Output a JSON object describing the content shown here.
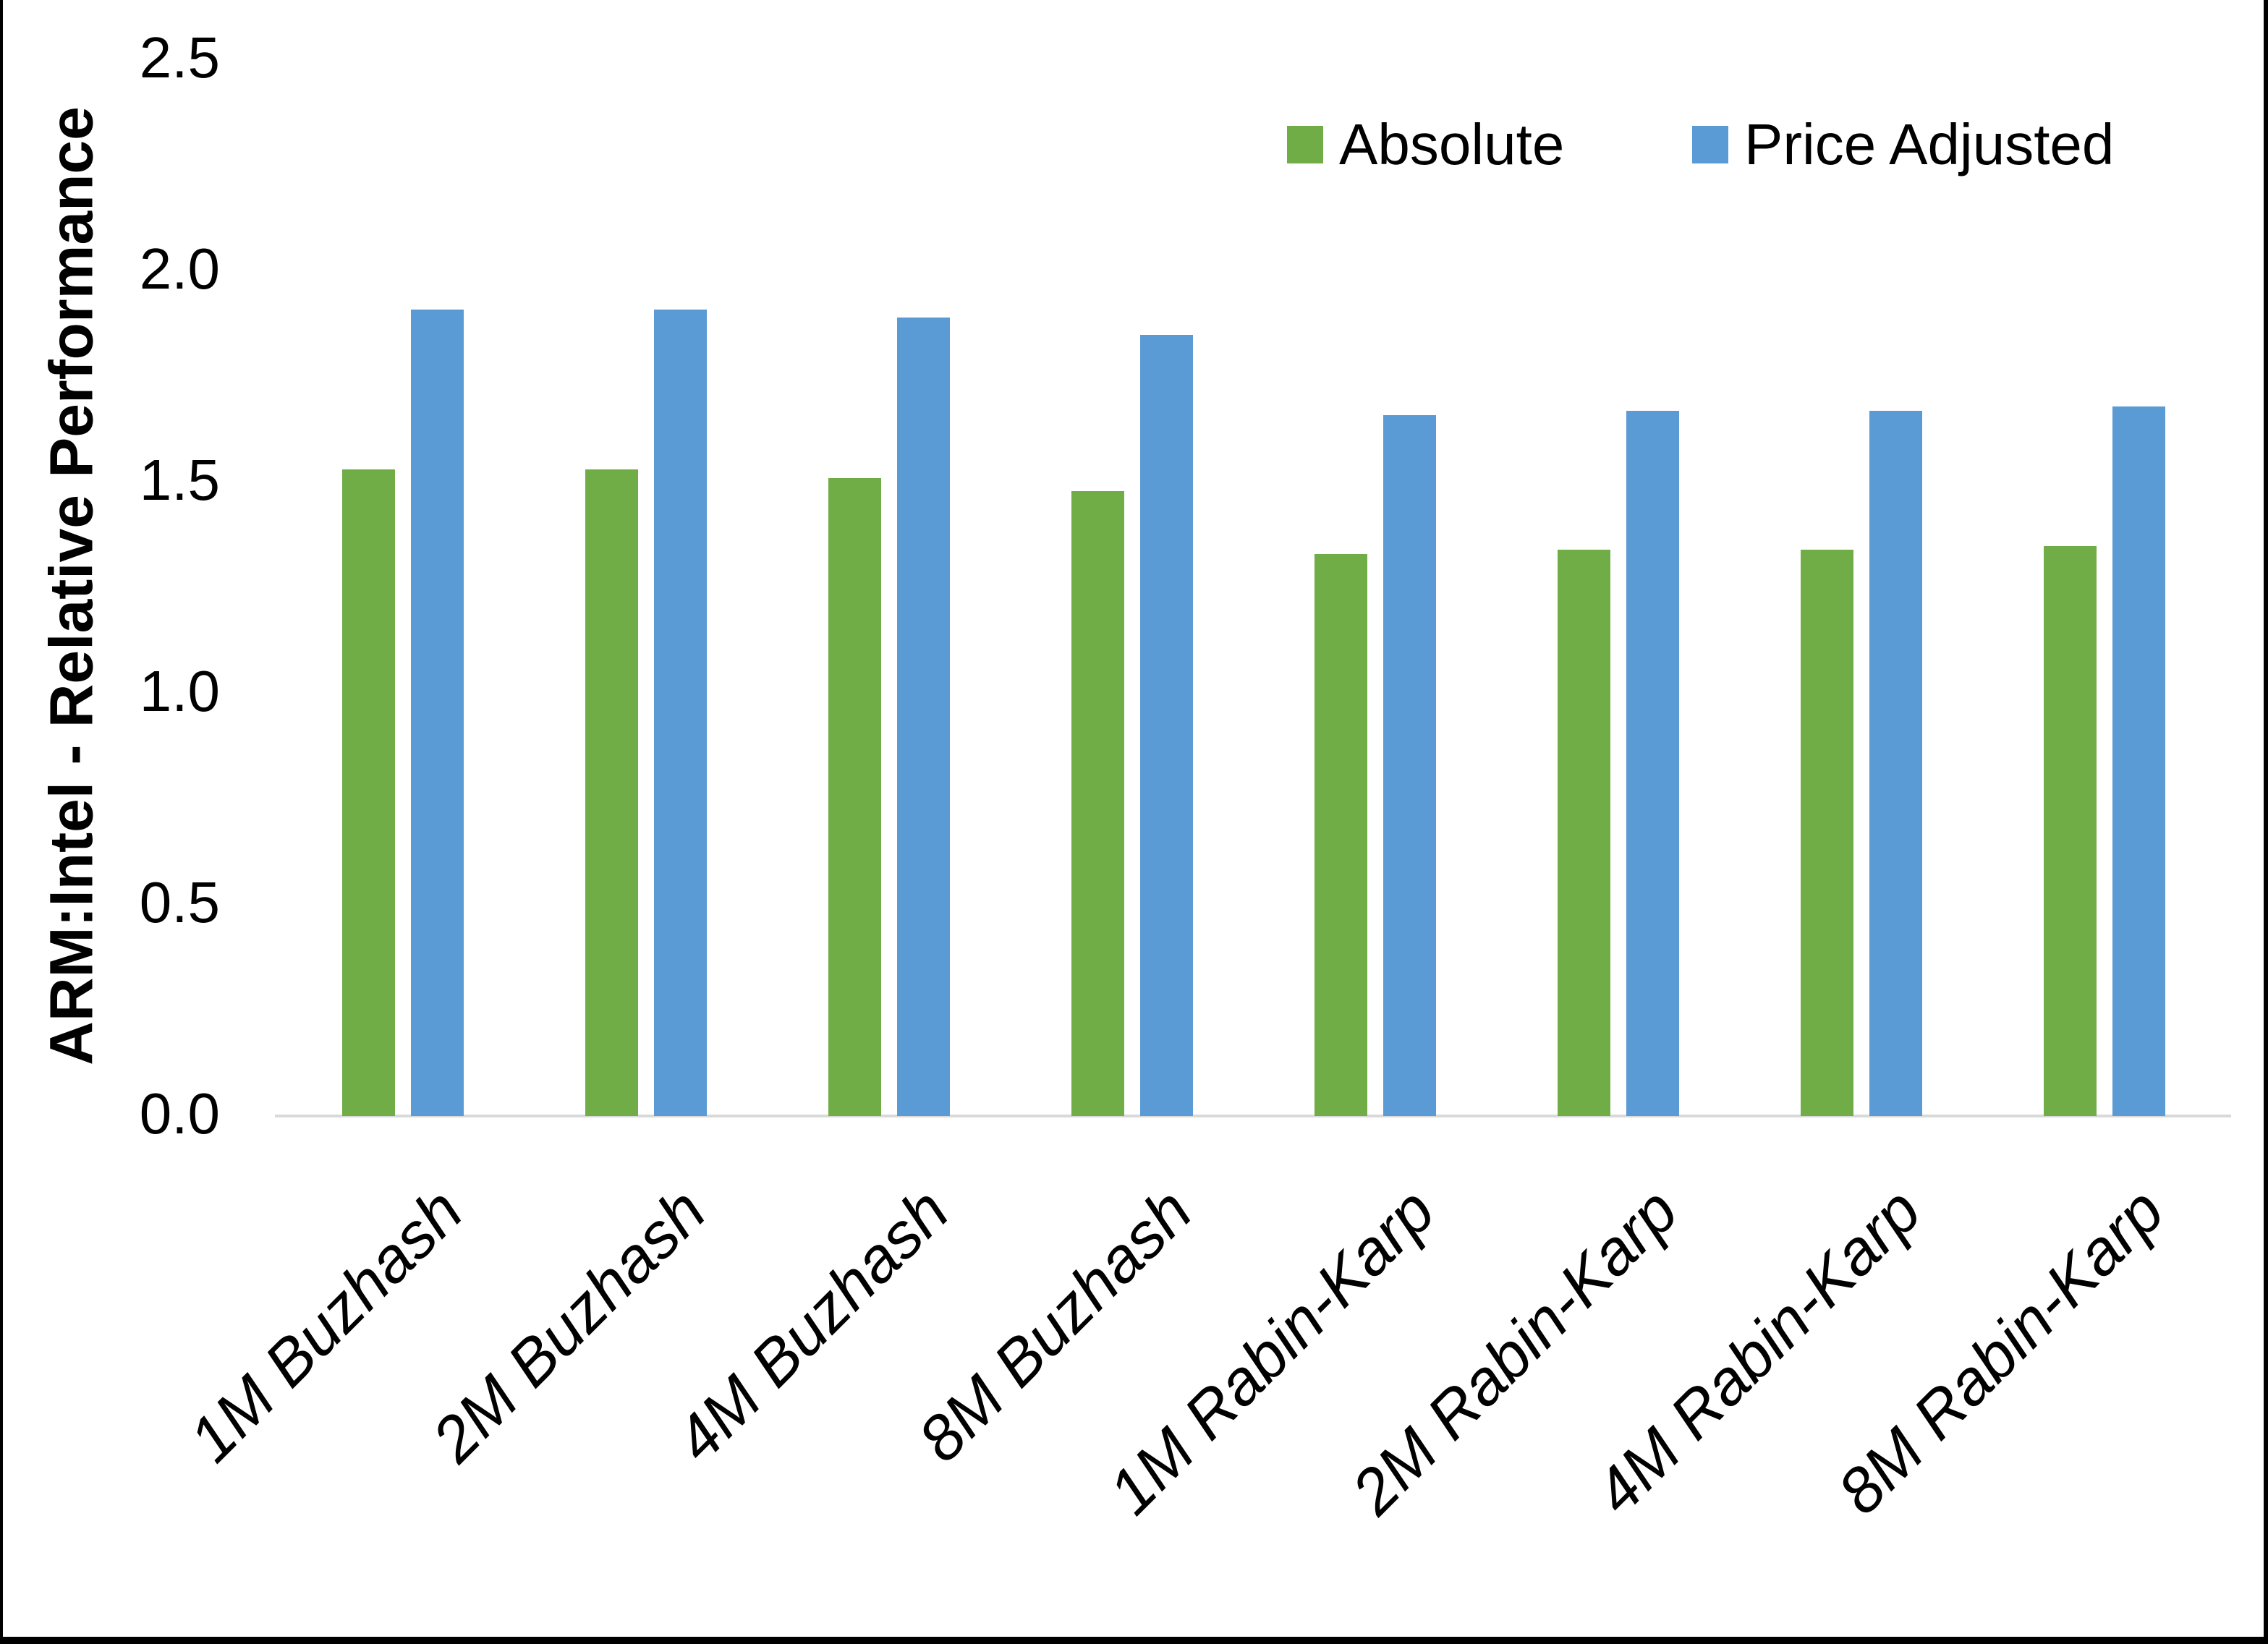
{
  "chart_data": {
    "type": "bar",
    "title": "",
    "xlabel": "",
    "ylabel": "ARM:Intel - Relative Performance",
    "ylim": [
      0.0,
      2.5
    ],
    "ytick_step": 0.5,
    "yticks": [
      "0.0",
      "0.5",
      "1.0",
      "1.5",
      "2.0",
      "2.5"
    ],
    "grid": false,
    "legend_position": "top-right-inside",
    "categories": [
      "1M Buzhash",
      "2M Buzhash",
      "4M Buzhash",
      "8M Buzhash",
      "1M Rabin-Karp",
      "2M Rabin-Karp",
      "4M Rabin-Karp",
      "8M Rabin-Karp"
    ],
    "series": [
      {
        "name": "Absolute",
        "color": "#70AD47",
        "values": [
          1.53,
          1.53,
          1.51,
          1.48,
          1.33,
          1.34,
          1.34,
          1.35
        ]
      },
      {
        "name": "Price Adjusted",
        "color": "#5B9BD5",
        "values": [
          1.91,
          1.91,
          1.89,
          1.85,
          1.66,
          1.67,
          1.67,
          1.68
        ]
      }
    ]
  },
  "colors": {
    "background": "#FFFFFF",
    "axis_line": "#D9D9D9",
    "text": "#000000",
    "page_border": "#000000"
  }
}
